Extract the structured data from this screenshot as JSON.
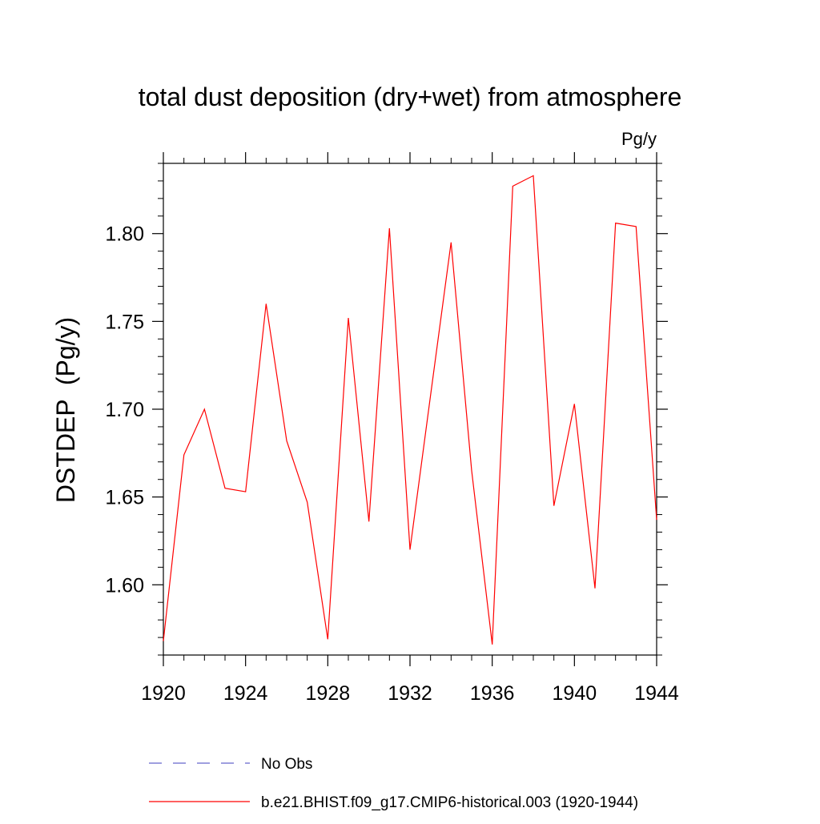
{
  "chart_data": {
    "type": "line",
    "title": "total dust deposition (dry+wet) from atmosphere",
    "units_label": "Pg/y",
    "ylabel": "DSTDEP  (Pg/y)",
    "xlabel": "",
    "xlim": [
      1920,
      1944
    ],
    "ylim": [
      1.56,
      1.84
    ],
    "x_ticks": [
      1920,
      1924,
      1928,
      1932,
      1936,
      1940,
      1944
    ],
    "x_tick_labels": [
      "1920",
      "1924",
      "1928",
      "1932",
      "1936",
      "1940",
      "1944"
    ],
    "y_ticks": [
      1.6,
      1.65,
      1.7,
      1.75,
      1.8
    ],
    "y_tick_labels": [
      "1.60",
      "1.65",
      "1.70",
      "1.75",
      "1.80"
    ],
    "grid": false,
    "legend_position": "bottom",
    "series": [
      {
        "name": "b.e21.BHIST.f09_g17.CMIP6-historical.003 (1920-1944)",
        "color": "#ff0000",
        "style": "solid",
        "x": [
          1920,
          1921,
          1922,
          1923,
          1924,
          1925,
          1926,
          1927,
          1928,
          1929,
          1930,
          1931,
          1932,
          1933,
          1934,
          1935,
          1936,
          1937,
          1938,
          1939,
          1940,
          1941,
          1942,
          1943,
          1944
        ],
        "values": [
          1.568,
          1.674,
          1.7,
          1.655,
          1.653,
          1.76,
          1.682,
          1.647,
          1.569,
          1.752,
          1.636,
          1.803,
          1.62,
          1.708,
          1.795,
          1.665,
          1.566,
          1.827,
          1.833,
          1.645,
          1.703,
          1.598,
          1.806,
          1.804,
          1.637
        ]
      }
    ],
    "legend": [
      {
        "label": "No Obs",
        "color": "#6666cc",
        "style": "dashed"
      },
      {
        "label": "b.e21.BHIST.f09_g17.CMIP6-historical.003 (1920-1944)",
        "color": "#ff0000",
        "style": "solid"
      }
    ]
  }
}
